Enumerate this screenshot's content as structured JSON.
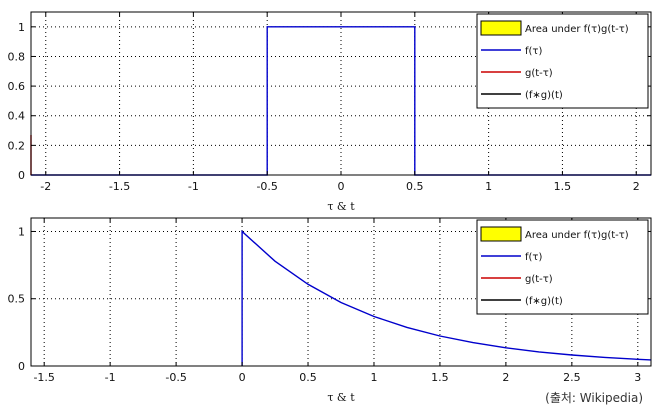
{
  "chart_data": [
    {
      "type": "line",
      "xlabel": "τ & t",
      "xlim": [
        -2.1,
        2.1
      ],
      "ylim": [
        0,
        1.1
      ],
      "xticks": [
        -2,
        -1.5,
        -1,
        -0.5,
        0,
        0.5,
        1,
        1.5,
        2
      ],
      "xtick_labels": [
        "-2",
        "-1.5",
        "-1",
        "-0.5",
        "0",
        "0.5",
        "1",
        "1.5",
        "2"
      ],
      "yticks": [
        0,
        0.2,
        0.4,
        0.6,
        0.8,
        1
      ],
      "ytick_labels": [
        "0",
        "0.2",
        "0.4",
        "0.6",
        "0.8",
        "1"
      ],
      "grid": true,
      "legend_position": "top-right",
      "legend": [
        {
          "label": "Area under f(τ)g(t-τ)",
          "kind": "patch",
          "color": "#ffff00"
        },
        {
          "label": "f(τ)",
          "kind": "line",
          "color": "#0000cc"
        },
        {
          "label": "g(t-τ)",
          "kind": "line",
          "color": "#cc0000"
        },
        {
          "label": "(f∗g)(t)",
          "kind": "line",
          "color": "#000000"
        }
      ],
      "series": [
        {
          "name": "f(τ)",
          "color": "#0000cc",
          "x": [
            -2.1,
            -0.5,
            -0.5,
            0.5,
            0.5,
            2.1
          ],
          "y": [
            0,
            0,
            1,
            1,
            0,
            0
          ]
        },
        {
          "name": "g(t-τ)",
          "color": "#cc0000",
          "x": [
            -2.1,
            -2.1
          ],
          "y": [
            0,
            0.27
          ]
        }
      ]
    },
    {
      "type": "line",
      "xlabel": "τ & t",
      "xlim": [
        -1.6,
        3.1
      ],
      "ylim": [
        0,
        1.1
      ],
      "xticks": [
        -1.5,
        -1,
        -0.5,
        0,
        0.5,
        1,
        1.5,
        2,
        2.5,
        3
      ],
      "xtick_labels": [
        "-1.5",
        "-1",
        "-0.5",
        "0",
        "0.5",
        "1",
        "1.5",
        "2",
        "2.5",
        "3"
      ],
      "yticks": [
        0,
        0.5,
        1
      ],
      "ytick_labels": [
        "0",
        "0.5",
        "1"
      ],
      "grid": true,
      "legend_position": "top-right",
      "legend": [
        {
          "label": "Area under f(τ)g(t-τ)",
          "kind": "patch",
          "color": "#ffff00"
        },
        {
          "label": "f(τ)",
          "kind": "line",
          "color": "#0000cc"
        },
        {
          "label": "g(t-τ)",
          "kind": "line",
          "color": "#cc0000"
        },
        {
          "label": "(f∗g)(t)",
          "kind": "line",
          "color": "#000000"
        }
      ],
      "series": [
        {
          "name": "f(τ)",
          "color": "#0000cc",
          "x": [
            0,
            0,
            0.25,
            0.5,
            0.75,
            1,
            1.25,
            1.5,
            1.75,
            2,
            2.25,
            2.5,
            2.75,
            3,
            3.1
          ],
          "y": [
            0,
            1,
            0.779,
            0.607,
            0.472,
            0.368,
            0.287,
            0.223,
            0.174,
            0.135,
            0.105,
            0.082,
            0.064,
            0.05,
            0.045
          ]
        }
      ]
    }
  ],
  "source_note": "(출처: Wikipedia)"
}
